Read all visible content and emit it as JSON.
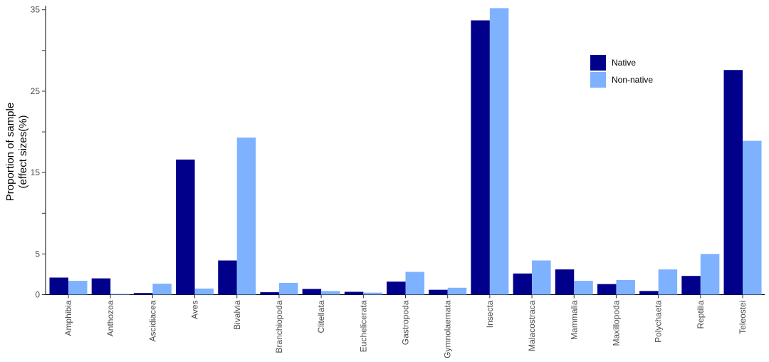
{
  "chart_data": {
    "type": "bar",
    "ylabel_line1": "Proportion of sample",
    "ylabel_line2": "(effect sizes(%)",
    "xlabel": "",
    "ylim": [
      0,
      35.5
    ],
    "yticks": [
      0,
      5,
      15,
      25,
      35
    ],
    "minor_yticks": [
      10,
      20,
      30
    ],
    "grid": false,
    "legend_position": "top-right",
    "categories": [
      "Amphibia",
      "Anthozoa",
      "Ascidiacea",
      "Aves",
      "Bivalvia",
      "Branchiopoda",
      "Clitellata",
      "Euchelicerata",
      "Gastropoda",
      "Gymnolaemata",
      "Insecta",
      "Malacostraca",
      "Mammalia",
      "Maxillopoda",
      "Polychaeta",
      "Reptilia",
      "Teleostei"
    ],
    "series": [
      {
        "name": "Native",
        "color": "#00008b",
        "values": [
          2.1,
          2.0,
          0.2,
          16.6,
          4.2,
          0.3,
          0.7,
          0.35,
          1.6,
          0.6,
          33.7,
          2.6,
          3.1,
          1.3,
          0.45,
          2.3,
          27.6
        ]
      },
      {
        "name": "Non-native",
        "color": "#7eb2ff",
        "values": [
          1.7,
          0.1,
          1.35,
          0.75,
          19.3,
          1.45,
          0.45,
          0.25,
          2.8,
          0.85,
          35.2,
          4.2,
          1.7,
          1.8,
          3.1,
          5.0,
          18.9
        ]
      }
    ]
  }
}
